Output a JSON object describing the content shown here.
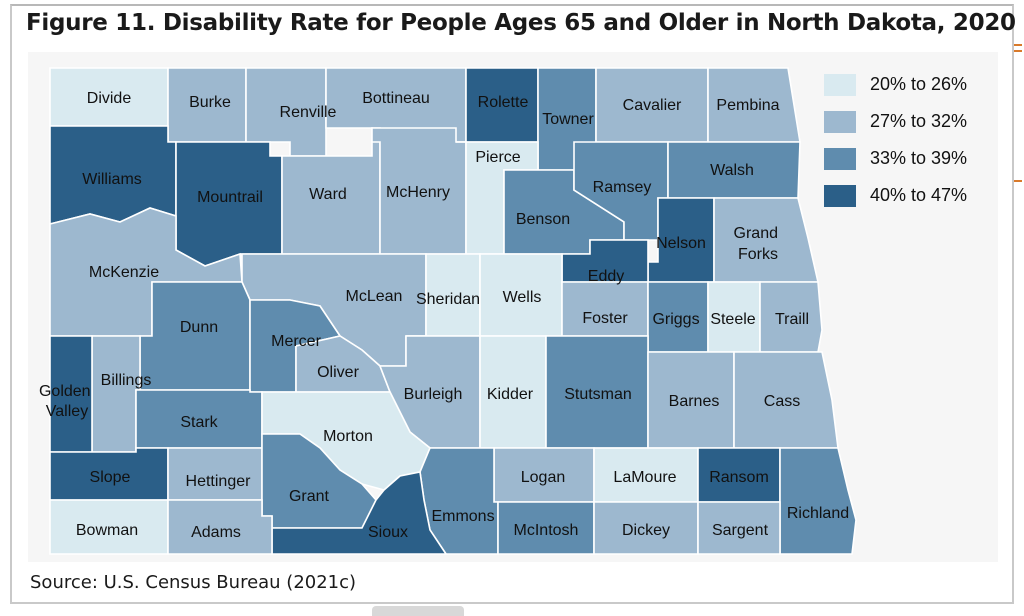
{
  "title": "Figure 11.  Disability Rate for People Ages 65 and Older in North Dakota, 2020",
  "source": "Source: U.S. Census Bureau (2021c)",
  "colors": {
    "c1": "#d9eaf0",
    "c2": "#9db8cf",
    "c3": "#5f8cae",
    "c4": "#2b5f88"
  },
  "legend": [
    {
      "label": "20% to 26%",
      "color": "c1"
    },
    {
      "label": "27% to 32%",
      "color": "c2"
    },
    {
      "label": "33% to 39%",
      "color": "c3"
    },
    {
      "label": "40% to 47%",
      "color": "c4"
    }
  ],
  "counties": [
    {
      "name": "Divide",
      "cls": "c1"
    },
    {
      "name": "Burke",
      "cls": "c2"
    },
    {
      "name": "Renville",
      "cls": "c2"
    },
    {
      "name": "Bottineau",
      "cls": "c2"
    },
    {
      "name": "Rolette",
      "cls": "c4"
    },
    {
      "name": "Towner",
      "cls": "c3"
    },
    {
      "name": "Cavalier",
      "cls": "c2"
    },
    {
      "name": "Pembina",
      "cls": "c2"
    },
    {
      "name": "Williams",
      "cls": "c4"
    },
    {
      "name": "Mountrail",
      "cls": "c4"
    },
    {
      "name": "Ward",
      "cls": "c2"
    },
    {
      "name": "McHenry",
      "cls": "c2"
    },
    {
      "name": "Pierce",
      "cls": "c1"
    },
    {
      "name": "Benson",
      "cls": "c3"
    },
    {
      "name": "Ramsey",
      "cls": "c3"
    },
    {
      "name": "Walsh",
      "cls": "c3"
    },
    {
      "name": "McKenzie",
      "cls": "c2"
    },
    {
      "name": "Nelson",
      "cls": "c4"
    },
    {
      "name": "Grand Forks",
      "cls": "c2"
    },
    {
      "name": "Eddy",
      "cls": "c4"
    },
    {
      "name": "McLean",
      "cls": "c2"
    },
    {
      "name": "Sheridan",
      "cls": "c1"
    },
    {
      "name": "Wells",
      "cls": "c1"
    },
    {
      "name": "Foster",
      "cls": "c2"
    },
    {
      "name": "Griggs",
      "cls": "c3"
    },
    {
      "name": "Steele",
      "cls": "c1"
    },
    {
      "name": "Traill",
      "cls": "c2"
    },
    {
      "name": "Dunn",
      "cls": "c3"
    },
    {
      "name": "Mercer",
      "cls": "c3"
    },
    {
      "name": "Oliver",
      "cls": "c2"
    },
    {
      "name": "Billings",
      "cls": "c2"
    },
    {
      "name": "Golden Valley",
      "cls": "c4"
    },
    {
      "name": "Burleigh",
      "cls": "c2"
    },
    {
      "name": "Kidder",
      "cls": "c1"
    },
    {
      "name": "Stutsman",
      "cls": "c3"
    },
    {
      "name": "Barnes",
      "cls": "c2"
    },
    {
      "name": "Cass",
      "cls": "c2"
    },
    {
      "name": "Stark",
      "cls": "c3"
    },
    {
      "name": "Morton",
      "cls": "c1"
    },
    {
      "name": "Slope",
      "cls": "c4"
    },
    {
      "name": "Hettinger",
      "cls": "c2"
    },
    {
      "name": "Grant",
      "cls": "c3"
    },
    {
      "name": "Logan",
      "cls": "c2"
    },
    {
      "name": "LaMoure",
      "cls": "c1"
    },
    {
      "name": "Ransom",
      "cls": "c4"
    },
    {
      "name": "Richland",
      "cls": "c3"
    },
    {
      "name": "Emmons",
      "cls": "c3"
    },
    {
      "name": "Sioux",
      "cls": "c4"
    },
    {
      "name": "McIntosh",
      "cls": "c3"
    },
    {
      "name": "Dickey",
      "cls": "c2"
    },
    {
      "name": "Sargent",
      "cls": "c2"
    },
    {
      "name": "Bowman",
      "cls": "c1"
    },
    {
      "name": "Adams",
      "cls": "c2"
    }
  ]
}
